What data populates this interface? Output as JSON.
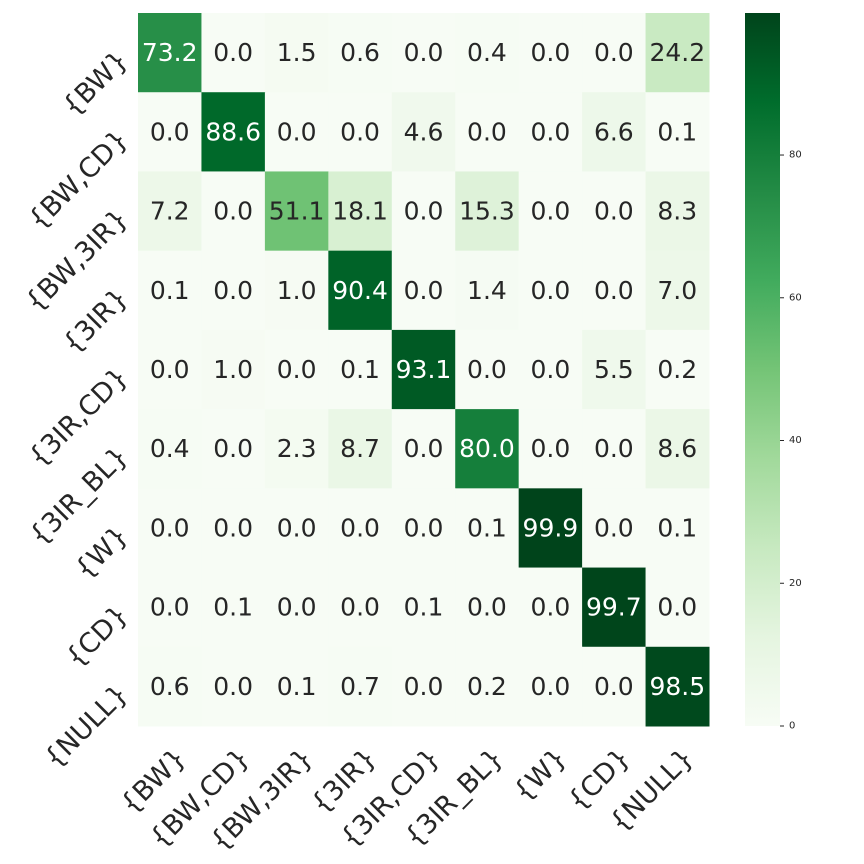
{
  "chart_data": {
    "type": "heatmap",
    "x_labels": [
      "{BW}",
      "{BW,CD}",
      "{BW,3IR}",
      "{3IR}",
      "{3IR,CD}",
      "{3IR_BL}",
      "{W}",
      "{CD}",
      "{NULL}"
    ],
    "y_labels": [
      "{BW}",
      "{BW,CD}",
      "{BW,3IR}",
      "{3IR}",
      "{3IR,CD}",
      "{3IR_BL}",
      "{W}",
      "{CD}",
      "{NULL}"
    ],
    "values": [
      [
        73.2,
        0.0,
        1.5,
        0.6,
        0.0,
        0.4,
        0.0,
        0.0,
        24.2
      ],
      [
        0.0,
        88.6,
        0.0,
        0.0,
        4.6,
        0.0,
        0.0,
        6.6,
        0.1
      ],
      [
        7.2,
        0.0,
        51.1,
        18.1,
        0.0,
        15.3,
        0.0,
        0.0,
        8.3
      ],
      [
        0.1,
        0.0,
        1.0,
        90.4,
        0.0,
        1.4,
        0.0,
        0.0,
        7.0
      ],
      [
        0.0,
        1.0,
        0.0,
        0.1,
        93.1,
        0.0,
        0.0,
        5.5,
        0.2
      ],
      [
        0.4,
        0.0,
        2.3,
        8.7,
        0.0,
        80.0,
        0.0,
        0.0,
        8.6
      ],
      [
        0.0,
        0.0,
        0.0,
        0.0,
        0.0,
        0.1,
        99.9,
        0.0,
        0.1
      ],
      [
        0.0,
        0.1,
        0.0,
        0.0,
        0.1,
        0.0,
        0.0,
        99.7,
        0.0
      ],
      [
        0.6,
        0.0,
        0.1,
        0.7,
        0.0,
        0.2,
        0.0,
        0.0,
        98.5
      ]
    ],
    "colormap": "Greens",
    "value_range": [
      0,
      99.9
    ],
    "colorbar_ticks": [
      0,
      20,
      40,
      60,
      80
    ],
    "colorbar_labels": [
      "0",
      "20",
      "40",
      "60",
      "80"
    ],
    "title": "",
    "xlabel": "",
    "ylabel": "",
    "grid": false
  }
}
